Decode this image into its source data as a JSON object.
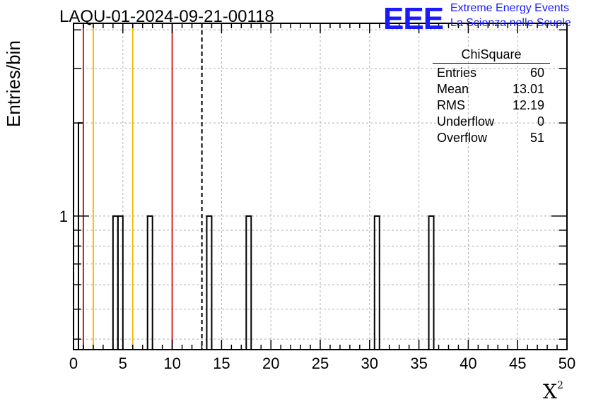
{
  "chart_data": {
    "type": "bar",
    "title": "LAQU-01-2024-09-21-00118",
    "xlabel": "X",
    "xlabel_superscript": "2",
    "ylabel": "Entries/bin",
    "xlim": [
      0,
      50
    ],
    "ylim": [
      0.37,
      4.2
    ],
    "yscale": "log",
    "grid": true,
    "x_ticks": [
      "0",
      "5",
      "10",
      "15",
      "20",
      "25",
      "30",
      "35",
      "40",
      "45",
      "50"
    ],
    "y_ticks": [
      "1"
    ],
    "bin_width": 0.5,
    "bins": [
      {
        "x": 0.5,
        "count": 2
      },
      {
        "x": 4.0,
        "count": 1
      },
      {
        "x": 4.5,
        "count": 1
      },
      {
        "x": 7.5,
        "count": 1
      },
      {
        "x": 13.5,
        "count": 1
      },
      {
        "x": 17.5,
        "count": 1
      },
      {
        "x": 30.5,
        "count": 1
      },
      {
        "x": 36.0,
        "count": 1
      }
    ],
    "vertical_lines": [
      {
        "x": 1,
        "color": "#dd2222",
        "style": "solid"
      },
      {
        "x": 2,
        "color": "#f0c000",
        "style": "solid"
      },
      {
        "x": 6,
        "color": "#f0c000",
        "style": "solid"
      },
      {
        "x": 10,
        "color": "#dd2222",
        "style": "solid"
      },
      {
        "x": 13.01,
        "color": "#000000",
        "style": "dashed"
      }
    ],
    "stats": {
      "title": "ChiSquare",
      "rows": [
        {
          "label": "Entries",
          "value": "60"
        },
        {
          "label": "Mean",
          "value": "13.01"
        },
        {
          "label": "RMS",
          "value": "12.19"
        },
        {
          "label": "Underflow",
          "value": "0"
        },
        {
          "label": "Overflow",
          "value": "51"
        }
      ]
    }
  },
  "logo": {
    "mark": "EEE",
    "line1": "Extreme Energy Events",
    "line2": "La Scienza nelle Scuole",
    "color": "#1a1aff"
  }
}
